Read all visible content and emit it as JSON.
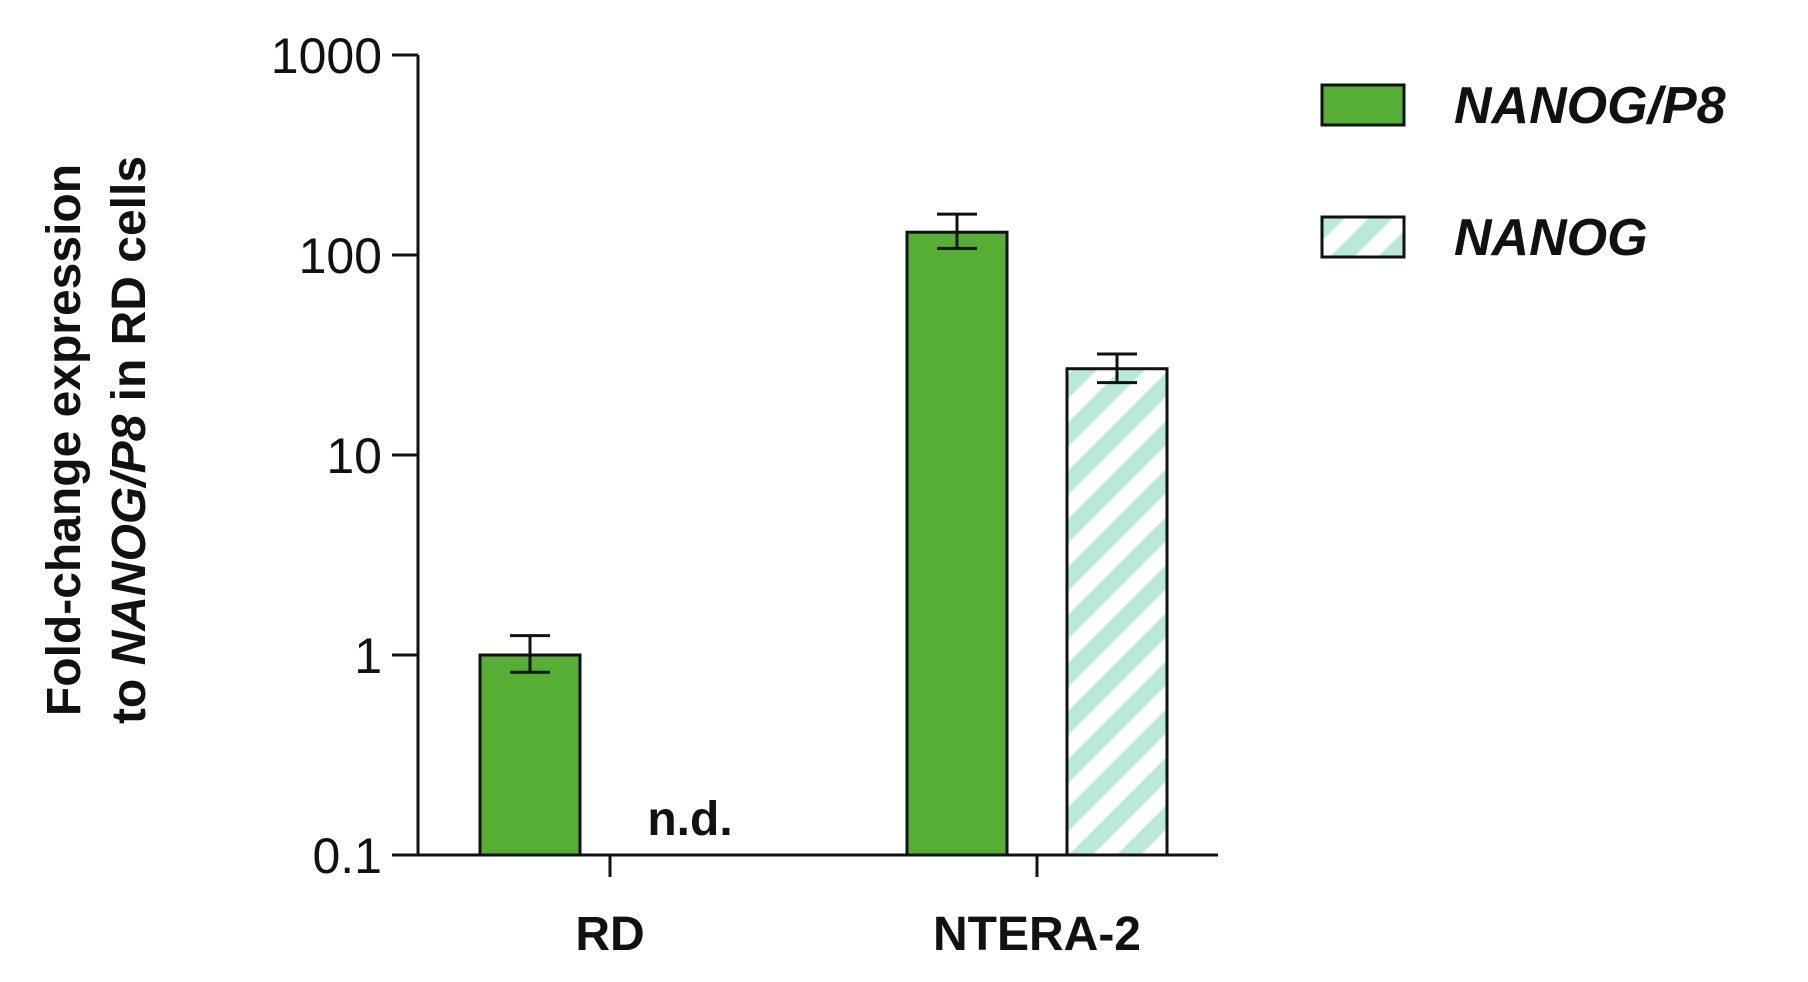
{
  "chart_data": {
    "type": "bar",
    "yscale": "log",
    "ylim": [
      0.1,
      1000
    ],
    "yticks": [
      0.1,
      1,
      10,
      100,
      1000
    ],
    "ytick_labels": [
      "0.1",
      "1",
      "10",
      "100",
      "1000"
    ],
    "ylabel_line1": "Fold-change expression",
    "ylabel_line2_prefix": "to ",
    "ylabel_line2_italic": "NANOG/P8",
    "ylabel_line2_suffix": " in RD cells",
    "categories": [
      "RD",
      "NTERA-2"
    ],
    "series": [
      {
        "name": "NANOG/P8",
        "color": "#56ae35",
        "pattern": "solid",
        "values": [
          1.0,
          130
        ],
        "err_low": [
          0.82,
          108
        ],
        "err_high": [
          1.25,
          160
        ]
      },
      {
        "name": "NANOG",
        "color": "#b9ead8",
        "pattern": "hatched",
        "values": [
          null,
          27
        ],
        "err_low": [
          null,
          23
        ],
        "err_high": [
          null,
          32
        ],
        "annotations": [
          "n.d.",
          null
        ]
      }
    ],
    "legend_position": "top-right",
    "grid": false
  }
}
